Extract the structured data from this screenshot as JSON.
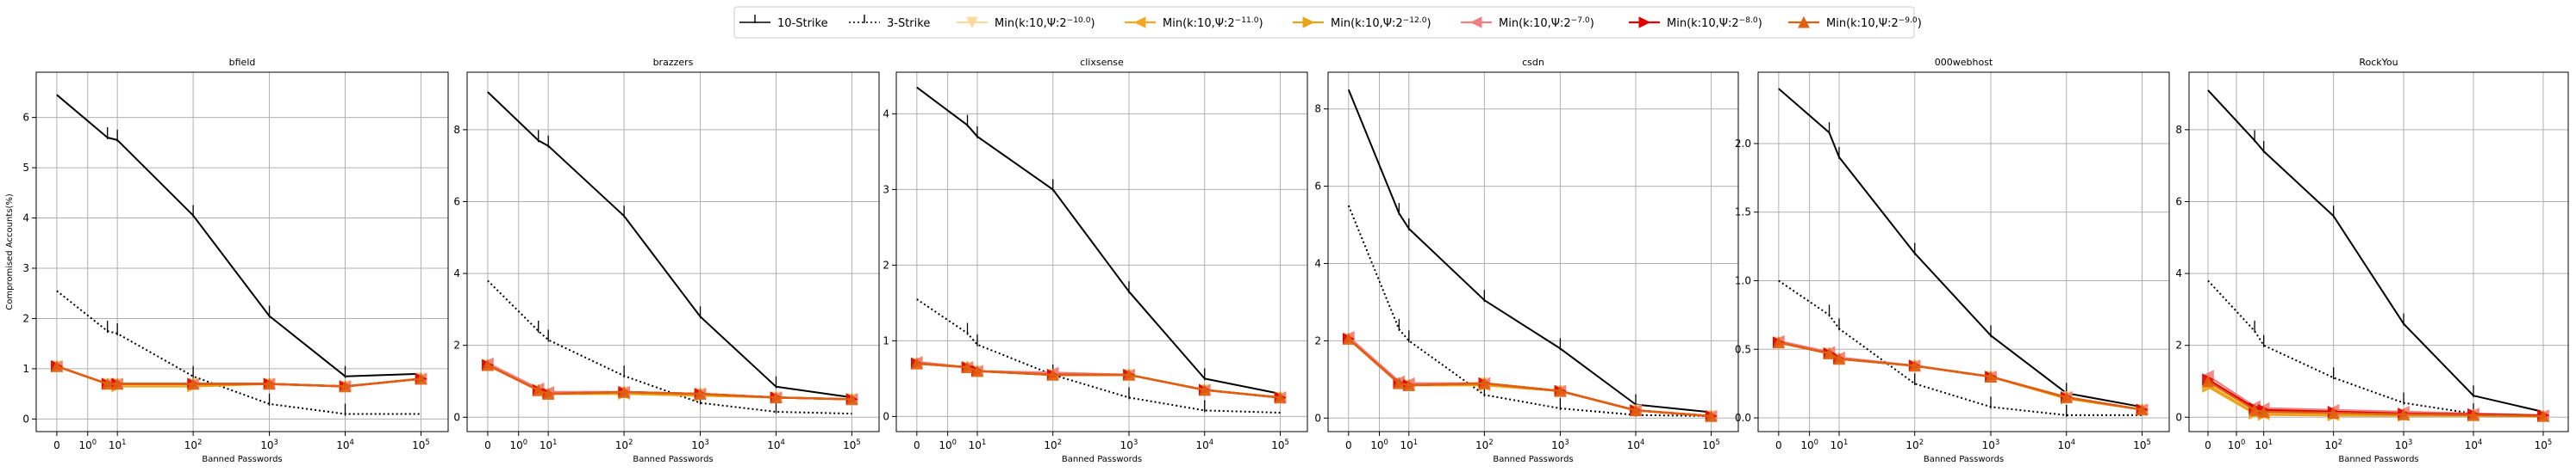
{
  "legend": [
    {
      "label": "10-Strike",
      "color": "#000000",
      "dash": "",
      "marker": "tick"
    },
    {
      "label": "3-Strike",
      "color": "#000000",
      "dash": "2,3",
      "marker": "tick"
    },
    {
      "label": "Min(k:10,Ψ:2^{−10.0})",
      "color": "#fdd9a0",
      "dash": "",
      "marker": "tri-down"
    },
    {
      "label": "Min(k:10,Ψ:2^{−11.0})",
      "color": "#f5a623",
      "dash": "",
      "marker": "tri-left"
    },
    {
      "label": "Min(k:10,Ψ:2^{−12.0})",
      "color": "#e8a317",
      "dash": "",
      "marker": "tri-right"
    },
    {
      "label": "Min(k:10,Ψ:2^{−7.0})",
      "color": "#f08080",
      "dash": "",
      "marker": "tri-left"
    },
    {
      "label": "Min(k:10,Ψ:2^{−8.0})",
      "color": "#e00000",
      "dash": "",
      "marker": "tri-right"
    },
    {
      "label": "Min(k:10,Ψ:2^{−9.0})",
      "color": "#e06010",
      "dash": "",
      "marker": "tri-up"
    }
  ],
  "chart_data": [
    {
      "type": "line",
      "title": "bfield",
      "xlabel": "Banned Passwords",
      "ylabel": "Compromised Accounts(%)",
      "x": [
        0,
        5,
        10,
        100,
        1000,
        10000,
        100000
      ],
      "x_ticks": [
        "0",
        "10^0",
        "10^1",
        "10^2",
        "10^3",
        "10^4",
        "10^5"
      ],
      "x_scale": "symlog",
      "ylim": [
        -0.25,
        6.9
      ],
      "y_ticks": [
        0,
        1,
        2,
        3,
        4,
        5,
        6
      ],
      "grid": true,
      "series": [
        {
          "name": "10-Strike",
          "values": [
            6.45,
            5.6,
            5.55,
            4.05,
            2.05,
            0.85,
            0.9
          ]
        },
        {
          "name": "3-Strike",
          "values": [
            2.55,
            1.75,
            1.7,
            0.85,
            0.3,
            0.1,
            0.1
          ]
        },
        {
          "name": "Min(k:10,Ψ:2^{−10.0})",
          "values": [
            1.05,
            0.7,
            0.7,
            0.7,
            0.7,
            0.65,
            0.8
          ]
        },
        {
          "name": "Min(k:10,Ψ:2^{−11.0})",
          "values": [
            1.05,
            0.7,
            0.7,
            0.7,
            0.7,
            0.65,
            0.8
          ]
        },
        {
          "name": "Min(k:10,Ψ:2^{−12.0})",
          "values": [
            1.05,
            0.7,
            0.65,
            0.65,
            0.7,
            0.65,
            0.8
          ]
        },
        {
          "name": "Min(k:10,Ψ:2^{−7.0})",
          "values": [
            1.05,
            0.7,
            0.7,
            0.7,
            0.7,
            0.65,
            0.8
          ]
        },
        {
          "name": "Min(k:10,Ψ:2^{−8.0})",
          "values": [
            1.05,
            0.7,
            0.7,
            0.7,
            0.7,
            0.65,
            0.8
          ]
        },
        {
          "name": "Min(k:10,Ψ:2^{−9.0})",
          "values": [
            1.05,
            0.7,
            0.7,
            0.7,
            0.7,
            0.65,
            0.8
          ]
        }
      ]
    },
    {
      "type": "line",
      "title": "brazzers",
      "xlabel": "Banned Passwords",
      "ylabel": "",
      "x": [
        0,
        5,
        10,
        100,
        1000,
        10000,
        100000
      ],
      "x_ticks": [
        "0",
        "10^0",
        "10^1",
        "10^2",
        "10^3",
        "10^4",
        "10^5"
      ],
      "x_scale": "symlog",
      "ylim": [
        -0.4,
        9.6
      ],
      "y_ticks": [
        0,
        2,
        4,
        6,
        8
      ],
      "grid": true,
      "series": [
        {
          "name": "10-Strike",
          "values": [
            9.05,
            7.7,
            7.55,
            5.6,
            2.8,
            0.85,
            0.55
          ]
        },
        {
          "name": "3-Strike",
          "values": [
            3.8,
            2.4,
            2.15,
            1.15,
            0.4,
            0.15,
            0.1
          ]
        },
        {
          "name": "Min(k:10,Ψ:2^{−10.0})",
          "values": [
            1.45,
            0.75,
            0.65,
            0.7,
            0.65,
            0.55,
            0.5
          ]
        },
        {
          "name": "Min(k:10,Ψ:2^{−11.0})",
          "values": [
            1.45,
            0.75,
            0.65,
            0.65,
            0.65,
            0.55,
            0.5
          ]
        },
        {
          "name": "Min(k:10,Ψ:2^{−12.0})",
          "values": [
            1.45,
            0.75,
            0.65,
            0.65,
            0.6,
            0.55,
            0.5
          ]
        },
        {
          "name": "Min(k:10,Ψ:2^{−7.0})",
          "values": [
            1.5,
            0.8,
            0.7,
            0.7,
            0.65,
            0.55,
            0.5
          ]
        },
        {
          "name": "Min(k:10,Ψ:2^{−8.0})",
          "values": [
            1.45,
            0.75,
            0.65,
            0.7,
            0.65,
            0.55,
            0.5
          ]
        },
        {
          "name": "Min(k:10,Ψ:2^{−9.0})",
          "values": [
            1.45,
            0.75,
            0.65,
            0.7,
            0.65,
            0.55,
            0.5
          ]
        }
      ]
    },
    {
      "type": "line",
      "title": "clixsense",
      "xlabel": "Banned Passwords",
      "ylabel": "",
      "x": [
        0,
        5,
        10,
        100,
        1000,
        10000,
        100000
      ],
      "x_ticks": [
        "0",
        "10^0",
        "10^1",
        "10^2",
        "10^3",
        "10^4",
        "10^5"
      ],
      "x_scale": "symlog",
      "ylim": [
        -0.2,
        4.55
      ],
      "y_ticks": [
        0,
        1,
        2,
        3,
        4
      ],
      "grid": true,
      "series": [
        {
          "name": "10-Strike",
          "values": [
            4.35,
            3.85,
            3.7,
            3.0,
            1.65,
            0.5,
            0.3
          ]
        },
        {
          "name": "3-Strike",
          "values": [
            1.55,
            1.1,
            0.95,
            0.55,
            0.25,
            0.08,
            0.05
          ]
        },
        {
          "name": "Min(k:10,Ψ:2^{−10.0})",
          "values": [
            0.7,
            0.65,
            0.6,
            0.55,
            0.55,
            0.35,
            0.25
          ]
        },
        {
          "name": "Min(k:10,Ψ:2^{−11.0})",
          "values": [
            0.7,
            0.65,
            0.6,
            0.55,
            0.55,
            0.35,
            0.25
          ]
        },
        {
          "name": "Min(k:10,Ψ:2^{−12.0})",
          "values": [
            0.7,
            0.65,
            0.6,
            0.55,
            0.55,
            0.35,
            0.25
          ]
        },
        {
          "name": "Min(k:10,Ψ:2^{−7.0})",
          "values": [
            0.72,
            0.65,
            0.6,
            0.58,
            0.55,
            0.35,
            0.25
          ]
        },
        {
          "name": "Min(k:10,Ψ:2^{−8.0})",
          "values": [
            0.7,
            0.65,
            0.6,
            0.55,
            0.55,
            0.35,
            0.25
          ]
        },
        {
          "name": "Min(k:10,Ψ:2^{−9.0})",
          "values": [
            0.7,
            0.65,
            0.6,
            0.55,
            0.55,
            0.35,
            0.25
          ]
        }
      ]
    },
    {
      "type": "line",
      "title": "csdn",
      "xlabel": "Banned Passwords",
      "ylabel": "",
      "x": [
        0,
        5,
        10,
        100,
        1000,
        10000,
        100000
      ],
      "x_ticks": [
        "0",
        "10^0",
        "10^1",
        "10^2",
        "10^3",
        "10^4",
        "10^5"
      ],
      "x_scale": "symlog",
      "ylim": [
        -0.35,
        8.95
      ],
      "y_ticks": [
        0,
        2,
        4,
        6,
        8
      ],
      "grid": true,
      "series": [
        {
          "name": "10-Strike",
          "values": [
            8.5,
            5.3,
            4.9,
            3.05,
            1.8,
            0.35,
            0.15
          ]
        },
        {
          "name": "3-Strike",
          "values": [
            5.5,
            2.3,
            2.0,
            0.6,
            0.25,
            0.08,
            0.05
          ]
        },
        {
          "name": "Min(k:10,Ψ:2^{−10.0})",
          "values": [
            2.05,
            0.9,
            0.85,
            0.9,
            0.7,
            0.2,
            0.05
          ]
        },
        {
          "name": "Min(k:10,Ψ:2^{−11.0})",
          "values": [
            2.05,
            0.9,
            0.85,
            0.85,
            0.7,
            0.2,
            0.05
          ]
        },
        {
          "name": "Min(k:10,Ψ:2^{−12.0})",
          "values": [
            2.05,
            0.9,
            0.85,
            0.85,
            0.7,
            0.2,
            0.05
          ]
        },
        {
          "name": "Min(k:10,Ψ:2^{−7.0})",
          "values": [
            2.1,
            0.95,
            0.9,
            0.9,
            0.7,
            0.2,
            0.05
          ]
        },
        {
          "name": "Min(k:10,Ψ:2^{−8.0})",
          "values": [
            2.05,
            0.9,
            0.85,
            0.9,
            0.7,
            0.2,
            0.05
          ]
        },
        {
          "name": "Min(k:10,Ψ:2^{−9.0})",
          "values": [
            2.05,
            0.9,
            0.85,
            0.9,
            0.7,
            0.2,
            0.05
          ]
        }
      ]
    },
    {
      "type": "line",
      "title": "000webhost",
      "xlabel": "Banned Passwords",
      "ylabel": "",
      "x": [
        0,
        5,
        10,
        100,
        1000,
        10000,
        100000
      ],
      "x_ticks": [
        "0",
        "10^0",
        "10^1",
        "10^2",
        "10^3",
        "10^4",
        "10^5"
      ],
      "x_scale": "symlog",
      "ylim": [
        -0.1,
        2.52
      ],
      "y_ticks": [
        0.0,
        0.5,
        1.0,
        1.5,
        2.0
      ],
      "grid": true,
      "series": [
        {
          "name": "10-Strike",
          "values": [
            2.4,
            2.08,
            1.9,
            1.2,
            0.6,
            0.18,
            0.08
          ]
        },
        {
          "name": "3-Strike",
          "values": [
            1.0,
            0.75,
            0.65,
            0.25,
            0.08,
            0.02,
            0.02
          ]
        },
        {
          "name": "Min(k:10,Ψ:2^{−10.0})",
          "values": [
            0.55,
            0.47,
            0.43,
            0.38,
            0.3,
            0.15,
            0.06
          ]
        },
        {
          "name": "Min(k:10,Ψ:2^{−11.0})",
          "values": [
            0.55,
            0.47,
            0.43,
            0.38,
            0.3,
            0.15,
            0.06
          ]
        },
        {
          "name": "Min(k:10,Ψ:2^{−12.0})",
          "values": [
            0.55,
            0.47,
            0.43,
            0.38,
            0.3,
            0.14,
            0.06
          ]
        },
        {
          "name": "Min(k:10,Ψ:2^{−7.0})",
          "values": [
            0.56,
            0.48,
            0.44,
            0.38,
            0.3,
            0.15,
            0.06
          ]
        },
        {
          "name": "Min(k:10,Ψ:2^{−8.0})",
          "values": [
            0.55,
            0.47,
            0.43,
            0.38,
            0.3,
            0.15,
            0.06
          ]
        },
        {
          "name": "Min(k:10,Ψ:2^{−9.0})",
          "values": [
            0.55,
            0.47,
            0.43,
            0.38,
            0.3,
            0.15,
            0.06
          ]
        }
      ]
    },
    {
      "type": "line",
      "title": "RockYou",
      "xlabel": "Banned Passwords",
      "ylabel": "",
      "x": [
        0,
        5,
        10,
        100,
        1000,
        10000,
        100000
      ],
      "x_ticks": [
        "0",
        "10^0",
        "10^1",
        "10^2",
        "10^3",
        "10^4",
        "10^5"
      ],
      "x_scale": "symlog",
      "ylim": [
        -0.4,
        9.6
      ],
      "y_ticks": [
        0,
        2,
        4,
        6,
        8
      ],
      "grid": true,
      "series": [
        {
          "name": "10-Strike",
          "values": [
            9.1,
            7.7,
            7.4,
            5.6,
            2.6,
            0.6,
            0.15
          ]
        },
        {
          "name": "3-Strike",
          "values": [
            3.8,
            2.4,
            2.0,
            1.1,
            0.4,
            0.1,
            0.05
          ]
        },
        {
          "name": "Min(k:10,Ψ:2^{−10.0})",
          "values": [
            0.95,
            0.15,
            0.1,
            0.08,
            0.05,
            0.05,
            0.02
          ]
        },
        {
          "name": "Min(k:10,Ψ:2^{−11.0})",
          "values": [
            0.9,
            0.12,
            0.08,
            0.06,
            0.05,
            0.05,
            0.02
          ]
        },
        {
          "name": "Min(k:10,Ψ:2^{−12.0})",
          "values": [
            0.85,
            0.1,
            0.07,
            0.05,
            0.04,
            0.04,
            0.02
          ]
        },
        {
          "name": "Min(k:10,Ψ:2^{−7.0})",
          "values": [
            1.15,
            0.3,
            0.25,
            0.2,
            0.15,
            0.1,
            0.05
          ]
        },
        {
          "name": "Min(k:10,Ψ:2^{−8.0})",
          "values": [
            1.05,
            0.25,
            0.2,
            0.15,
            0.1,
            0.08,
            0.05
          ]
        },
        {
          "name": "Min(k:10,Ψ:2^{−9.0})",
          "values": [
            1.0,
            0.2,
            0.15,
            0.12,
            0.08,
            0.06,
            0.03
          ]
        }
      ]
    }
  ]
}
